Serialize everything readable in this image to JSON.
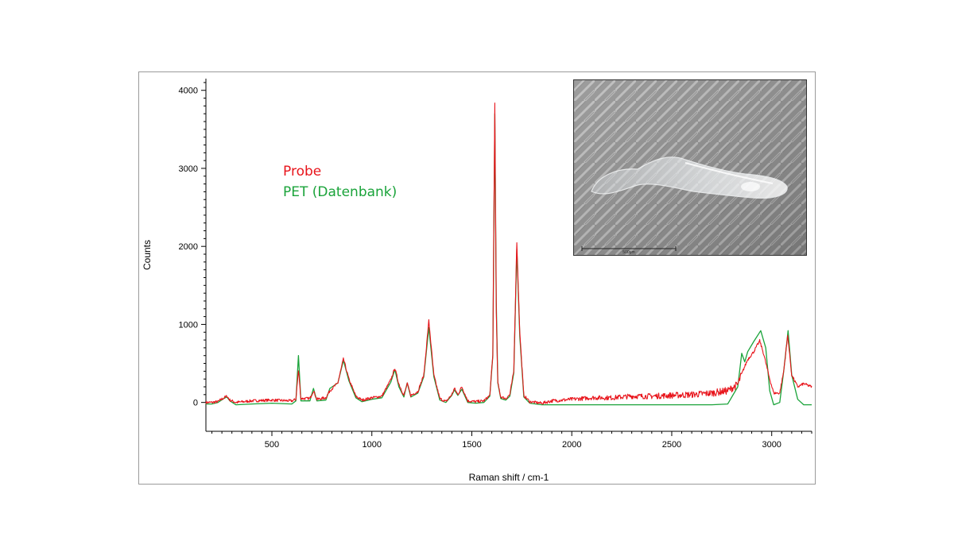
{
  "colors": {
    "probe": "#e8141b",
    "pet": "#1aa33a",
    "axis": "#000000"
  },
  "inset": {
    "kind": "micrograph",
    "scale_bar_label": "500µm"
  },
  "chart_data": {
    "type": "line",
    "title": "",
    "xlabel": "Raman shift / cm-1",
    "ylabel": "Counts",
    "xlim": [
      170,
      3200
    ],
    "ylim": [
      -370,
      4150
    ],
    "x_ticks": [
      500,
      1000,
      1500,
      2000,
      2500,
      3000
    ],
    "y_ticks": [
      0,
      1000,
      2000,
      3000,
      4000
    ],
    "legend": {
      "placement": "upper-left inside plot",
      "entries": [
        "Probe",
        "PET (Datenbank)"
      ]
    },
    "series": [
      {
        "name": "Probe",
        "color": "#e8141b",
        "noisy": true,
        "x": [
          170,
          200,
          230,
          260,
          275,
          290,
          320,
          400,
          500,
          600,
          620,
          633,
          645,
          690,
          708,
          725,
          770,
          790,
          830,
          858,
          885,
          920,
          950,
          1000,
          1050,
          1095,
          1115,
          1135,
          1160,
          1177,
          1195,
          1230,
          1260,
          1285,
          1310,
          1340,
          1370,
          1400,
          1413,
          1430,
          1450,
          1480,
          1520,
          1560,
          1590,
          1605,
          1615,
          1622,
          1630,
          1645,
          1670,
          1690,
          1710,
          1725,
          1740,
          1760,
          1790,
          1850,
          1900,
          2000,
          2100,
          2200,
          2300,
          2400,
          2500,
          2600,
          2700,
          2780,
          2830,
          2860,
          2880,
          2910,
          2940,
          2960,
          2990,
          3010,
          3040,
          3060,
          3080,
          3100,
          3130,
          3160,
          3200
        ],
        "y": [
          0,
          0,
          10,
          60,
          80,
          30,
          0,
          20,
          30,
          20,
          40,
          420,
          50,
          50,
          150,
          40,
          60,
          150,
          250,
          560,
          300,
          80,
          30,
          60,
          80,
          290,
          440,
          240,
          90,
          240,
          90,
          140,
          350,
          1050,
          350,
          50,
          10,
          100,
          180,
          100,
          200,
          20,
          10,
          20,
          90,
          600,
          3840,
          1200,
          250,
          70,
          50,
          100,
          400,
          2060,
          900,
          90,
          10,
          -10,
          20,
          40,
          60,
          60,
          80,
          80,
          90,
          100,
          120,
          150,
          230,
          430,
          550,
          650,
          790,
          620,
          300,
          120,
          120,
          400,
          860,
          350,
          200,
          240,
          200
        ]
      },
      {
        "name": "PET (Datenbank)",
        "color": "#1aa33a",
        "noisy": false,
        "x": [
          170,
          200,
          230,
          260,
          275,
          290,
          320,
          400,
          500,
          600,
          620,
          633,
          645,
          690,
          708,
          725,
          770,
          790,
          830,
          858,
          885,
          920,
          950,
          1000,
          1050,
          1095,
          1115,
          1135,
          1160,
          1177,
          1195,
          1230,
          1260,
          1285,
          1310,
          1340,
          1370,
          1400,
          1413,
          1430,
          1450,
          1480,
          1520,
          1560,
          1590,
          1605,
          1615,
          1622,
          1630,
          1645,
          1670,
          1690,
          1710,
          1725,
          1740,
          1760,
          1790,
          1850,
          1900,
          2000,
          2100,
          2200,
          2300,
          2400,
          2500,
          2600,
          2700,
          2780,
          2830,
          2850,
          2865,
          2880,
          2910,
          2945,
          2970,
          2990,
          3010,
          3040,
          3060,
          3082,
          3100,
          3130,
          3160,
          3200
        ],
        "y": [
          -20,
          -20,
          0,
          50,
          70,
          20,
          -30,
          -20,
          -10,
          -20,
          20,
          600,
          20,
          20,
          180,
          20,
          30,
          180,
          250,
          540,
          280,
          60,
          10,
          40,
          60,
          260,
          420,
          200,
          70,
          250,
          70,
          120,
          330,
          960,
          330,
          30,
          0,
          90,
          160,
          90,
          170,
          0,
          -10,
          0,
          80,
          600,
          3700,
          1300,
          250,
          50,
          30,
          80,
          380,
          1960,
          850,
          70,
          -10,
          -30,
          -30,
          -30,
          -30,
          -30,
          -30,
          -30,
          -30,
          -30,
          -30,
          -20,
          200,
          630,
          520,
          650,
          780,
          920,
          700,
          150,
          -30,
          0,
          400,
          920,
          350,
          40,
          -30,
          -30
        ]
      }
    ]
  }
}
